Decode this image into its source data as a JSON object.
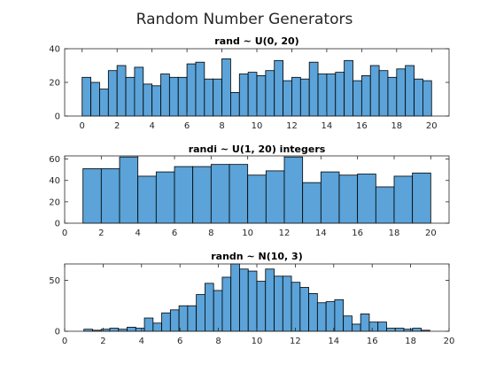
{
  "figure": {
    "title": "Random Number Generators",
    "bar_color": "#5ba3d8",
    "edge_color": "#000000"
  },
  "chart_data": [
    {
      "type": "bar",
      "subtype": "histogram",
      "title": "rand ~ U(0, 20)",
      "xlabel": "",
      "ylabel": "",
      "xlim": [
        -1,
        21
      ],
      "ylim": [
        0,
        40
      ],
      "xticks": [
        0,
        2,
        4,
        6,
        8,
        10,
        12,
        14,
        16,
        18,
        20
      ],
      "yticks": [
        0,
        20,
        40
      ],
      "bin_edges": [
        0,
        20
      ],
      "counts": [
        23,
        20,
        16,
        27,
        30,
        23,
        29,
        19,
        18,
        25,
        23,
        23,
        31,
        32,
        22,
        22,
        34,
        14,
        25,
        26,
        24,
        27,
        33,
        21,
        23,
        22,
        32,
        25,
        25,
        26,
        33,
        21,
        24,
        30,
        27,
        23,
        28,
        30,
        22,
        21
      ],
      "grid": false
    },
    {
      "type": "bar",
      "subtype": "histogram",
      "title": "randi ~ U(1, 20) integers",
      "xlabel": "",
      "ylabel": "",
      "xlim": [
        0,
        21
      ],
      "ylim": [
        0,
        63
      ],
      "xticks": [
        0,
        2,
        4,
        6,
        8,
        10,
        12,
        14,
        16,
        18,
        20
      ],
      "yticks": [
        0,
        20,
        40,
        60
      ],
      "bin_edges": [
        1,
        20
      ],
      "counts": [
        51,
        51,
        62,
        44,
        48,
        53,
        53,
        55,
        55,
        45,
        49,
        62,
        38,
        48,
        45,
        46,
        34,
        44,
        47
      ],
      "grid": false
    },
    {
      "type": "bar",
      "subtype": "histogram",
      "title": "randn ~ N(10, 3)",
      "xlabel": "",
      "ylabel": "",
      "xlim": [
        0,
        20
      ],
      "ylim": [
        0,
        66
      ],
      "xticks": [
        0,
        2,
        4,
        6,
        8,
        10,
        12,
        14,
        16,
        18,
        20
      ],
      "yticks": [
        0,
        50
      ],
      "bin_edges": [
        1,
        19
      ],
      "counts": [
        2,
        1,
        2,
        3,
        2,
        4,
        3,
        13,
        8,
        18,
        21,
        25,
        25,
        36,
        47,
        40,
        53,
        66,
        61,
        59,
        49,
        61,
        54,
        54,
        48,
        43,
        37,
        28,
        29,
        31,
        15,
        7,
        17,
        9,
        9,
        3,
        3,
        2,
        3,
        1
      ],
      "grid": false
    }
  ]
}
